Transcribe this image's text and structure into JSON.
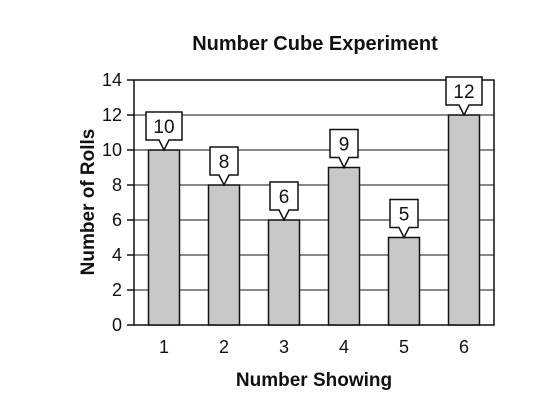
{
  "chart_data": {
    "type": "bar",
    "title": "Number Cube Experiment",
    "xlabel": "Number Showing",
    "ylabel": "Number of Rolls",
    "categories": [
      "1",
      "2",
      "3",
      "4",
      "5",
      "6"
    ],
    "values": [
      10,
      8,
      6,
      9,
      5,
      12
    ],
    "ylim": [
      0,
      14
    ],
    "yticks": [
      "0",
      "2",
      "4",
      "6",
      "8",
      "10",
      "12",
      "14"
    ],
    "data_labels": [
      "10",
      "8",
      "6",
      "9",
      "5",
      "12"
    ],
    "grid": true,
    "colors": {
      "bar": "#c8c8c8",
      "stroke": "#111111",
      "grid": "#111111"
    }
  }
}
